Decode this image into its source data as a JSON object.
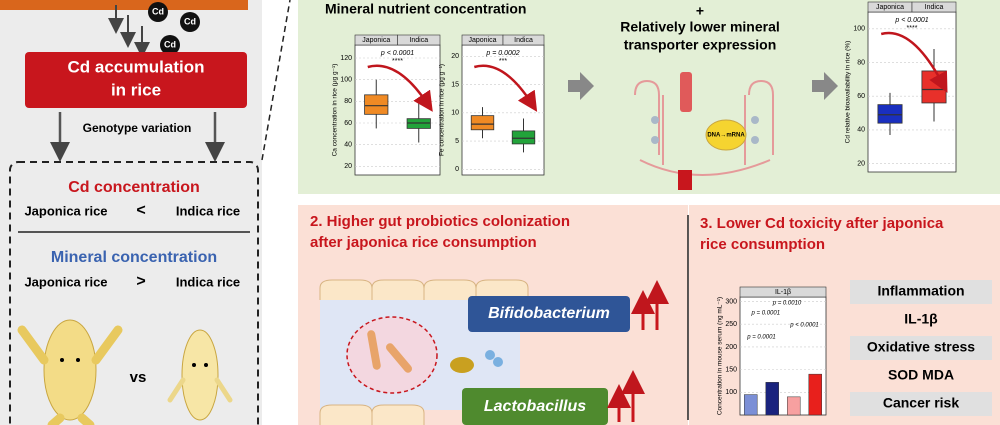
{
  "left": {
    "cd_ions": [
      "Cd",
      "Cd",
      "Cd"
    ],
    "accumulation": [
      "Cd accumulation",
      "in rice"
    ],
    "genotype": "Genotype variation",
    "cd_title": "Cd concentration",
    "cd_row": [
      "Japonica rice",
      "<",
      "Indica rice"
    ],
    "mineral_title": "Mineral concentration",
    "mineral_row": [
      "Japonica rice",
      ">",
      "Indica rice"
    ],
    "vs": "vs"
  },
  "panel1": {
    "title": "Mineral nutrient concentration",
    "plus": "+",
    "transporter": [
      "Relatively lower mineral",
      "transporter expression"
    ],
    "dna": "DNA→mRNA"
  },
  "charts": [
    {
      "groups": [
        "Japonica",
        "Indica"
      ],
      "p_label": "p < 0.0001",
      "stars": "****",
      "y_label": "Ca concentration in rice (μg g⁻¹)",
      "ylim": [
        12,
        132
      ],
      "yticks": [
        20,
        40,
        60,
        80,
        100,
        120
      ],
      "colors": [
        "#f08a24",
        "#22a33a"
      ],
      "boxes": [
        {
          "min": 55,
          "q1": 68,
          "median": 76,
          "q3": 86,
          "max": 100
        },
        {
          "min": 42,
          "q1": 55,
          "median": 60,
          "q3": 64,
          "max": 78
        }
      ]
    },
    {
      "groups": [
        "Japonica",
        "Indica"
      ],
      "p_label": "p = 0.0002",
      "stars": "***",
      "y_label": "Fe concentration in rice (μg g⁻¹)",
      "ylim": [
        -1,
        22
      ],
      "yticks": [
        0,
        5,
        10,
        15,
        20
      ],
      "colors": [
        "#f08a24",
        "#22a33a"
      ],
      "boxes": [
        {
          "min": 5.5,
          "q1": 7,
          "median": 8,
          "q3": 9.5,
          "max": 11
        },
        {
          "min": 3,
          "q1": 4.5,
          "median": 5.5,
          "q3": 6.8,
          "max": 9
        }
      ]
    },
    {
      "groups": [
        "Japonica",
        "Indica"
      ],
      "p_label": "p < 0.0001",
      "stars": "****",
      "y_label": "Cd relative bioavailability in rice (%)",
      "ylim": [
        15,
        110
      ],
      "yticks": [
        20,
        40,
        60,
        80,
        100
      ],
      "colors": [
        "#1a2fbf",
        "#e8302a"
      ],
      "boxes": [
        {
          "min": 37,
          "q1": 44,
          "median": 49,
          "q3": 55,
          "max": 62
        },
        {
          "min": 45,
          "q1": 56,
          "median": 64,
          "q3": 75,
          "max": 88
        }
      ]
    }
  ],
  "panel2": {
    "title": [
      "2. Higher gut probiotics colonization",
      "after japonica rice consumption"
    ],
    "bacteria": [
      "Bifidobacterium",
      "Lactobacillus"
    ]
  },
  "panel3": {
    "title": [
      "3. Lower Cd toxicity after japonica",
      "rice consumption"
    ],
    "chart": {
      "title": "IL-1β",
      "y_label": "Concentration in mouse serum (ng mL⁻¹)",
      "ylim": [
        50,
        310
      ],
      "yticks": [
        100,
        150,
        200,
        250,
        300
      ],
      "values": [
        95,
        122,
        90,
        140
      ],
      "colors": [
        "#7b8fd6",
        "#1a237e",
        "#f7a0a0",
        "#e8201c"
      ],
      "p_labels": [
        "p = 0.0001",
        "p = 0.0010",
        "p < 0.0001",
        "p = 0.0001"
      ]
    },
    "boxes": [
      "Inflammation",
      "IL-1β",
      "Oxidative stress",
      "SOD MDA",
      "Cancer risk"
    ]
  }
}
